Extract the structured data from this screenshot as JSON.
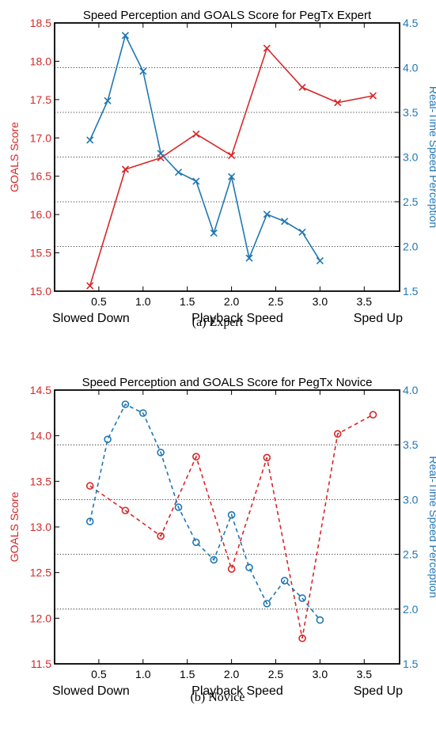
{
  "colors": {
    "goals": "#d62728",
    "speed": "#1f77b4",
    "axis": "#000000",
    "grid": "#000000"
  },
  "chart_data": [
    {
      "type": "line",
      "caption": "(a) Expert",
      "title": "Speed Perception and GOALS Score for PegTx Expert",
      "xlabel": "Playback Speed",
      "xlabel_left": "Slowed Down",
      "xlabel_right": "Sped Up",
      "ylabel_left": "GOALS Score",
      "ylabel_right": "Real-Time Speed Perception",
      "xlim": [
        0,
        3.9
      ],
      "xticks": [
        0.5,
        1.0,
        1.5,
        2.0,
        2.5,
        3.0,
        3.5
      ],
      "xtick_labels": [
        "0.5",
        "1.0",
        "1.5",
        "2.0",
        "2.5",
        "3.0",
        "3.5"
      ],
      "ylim_left": [
        15.0,
        18.5
      ],
      "yticks_left": [
        15.0,
        15.5,
        16.0,
        16.5,
        17.0,
        17.5,
        18.0,
        18.5
      ],
      "ytick_labels_left": [
        "15.0",
        "15.5",
        "16.0",
        "16.5",
        "17.0",
        "17.5",
        "18.0",
        "18.5"
      ],
      "ylim_right": [
        1.5,
        4.5
      ],
      "yticks_right": [
        1.5,
        2.0,
        2.5,
        3.0,
        3.5,
        4.0,
        4.5
      ],
      "ytick_labels_right": [
        "1.5",
        "2.0",
        "2.5",
        "3.0",
        "3.5",
        "4.0",
        "4.5"
      ],
      "grid": "horizontal dotted at right-axis ticks",
      "marker": "x",
      "line_style": "solid",
      "series": [
        {
          "name": "",
          "axis": "left",
          "x": [
            0.4,
            0.8,
            1.2,
            1.6,
            2.0,
            2.4,
            2.8,
            3.2,
            3.6
          ],
          "values": [
            15.07,
            16.59,
            16.74,
            17.05,
            16.77,
            18.17,
            17.66,
            17.46,
            17.55
          ]
        },
        {
          "name": "",
          "axis": "right",
          "x": [
            0.4,
            0.6,
            0.8,
            1.0,
            1.2,
            1.4,
            1.6,
            1.8,
            2.0,
            2.2,
            2.4,
            2.6,
            2.8,
            3.0
          ],
          "values": [
            3.19,
            3.63,
            4.36,
            3.96,
            3.04,
            2.83,
            2.73,
            2.15,
            2.78,
            1.87,
            2.36,
            2.28,
            2.16,
            1.84
          ]
        }
      ]
    },
    {
      "type": "line",
      "caption": "(b) Novice",
      "title": "Speed Perception and GOALS Score for PegTx Novice",
      "xlabel": "Playback Speed",
      "xlabel_left": "Slowed Down",
      "xlabel_right": "Sped Up",
      "ylabel_left": "GOALS Score",
      "ylabel_right": "Real-Time Speed Perception",
      "xlim": [
        0,
        3.9
      ],
      "xticks": [
        0.5,
        1.0,
        1.5,
        2.0,
        2.5,
        3.0,
        3.5
      ],
      "xtick_labels": [
        "0.5",
        "1.0",
        "1.5",
        "2.0",
        "2.5",
        "3.0",
        "3.5"
      ],
      "ylim_left": [
        11.5,
        14.5
      ],
      "yticks_left": [
        11.5,
        12.0,
        12.5,
        13.0,
        13.5,
        14.0,
        14.5
      ],
      "ytick_labels_left": [
        "11.5",
        "12.0",
        "12.5",
        "13.0",
        "13.5",
        "14.0",
        "14.5"
      ],
      "ylim_right": [
        1.5,
        4.0
      ],
      "yticks_right": [
        1.5,
        2.0,
        2.5,
        3.0,
        3.5,
        4.0
      ],
      "ytick_labels_right": [
        "1.5",
        "2.0",
        "2.5",
        "3.0",
        "3.5",
        "4.0"
      ],
      "grid": "horizontal dotted at right-axis ticks",
      "marker": "o",
      "line_style": "dashed",
      "series": [
        {
          "name": "",
          "axis": "left",
          "x": [
            0.4,
            0.8,
            1.2,
            1.6,
            2.0,
            2.4,
            2.8,
            3.2,
            3.6
          ],
          "values": [
            13.45,
            13.18,
            12.9,
            13.77,
            12.54,
            13.76,
            11.78,
            14.02,
            14.23
          ]
        },
        {
          "name": "",
          "axis": "right",
          "x": [
            0.4,
            0.6,
            0.8,
            1.0,
            1.2,
            1.4,
            1.6,
            1.8,
            2.0,
            2.2,
            2.4,
            2.6,
            2.8,
            3.0
          ],
          "values": [
            2.8,
            3.55,
            3.87,
            3.79,
            3.43,
            2.93,
            2.61,
            2.45,
            2.86,
            2.38,
            2.05,
            2.26,
            2.1,
            1.9
          ]
        }
      ]
    }
  ]
}
